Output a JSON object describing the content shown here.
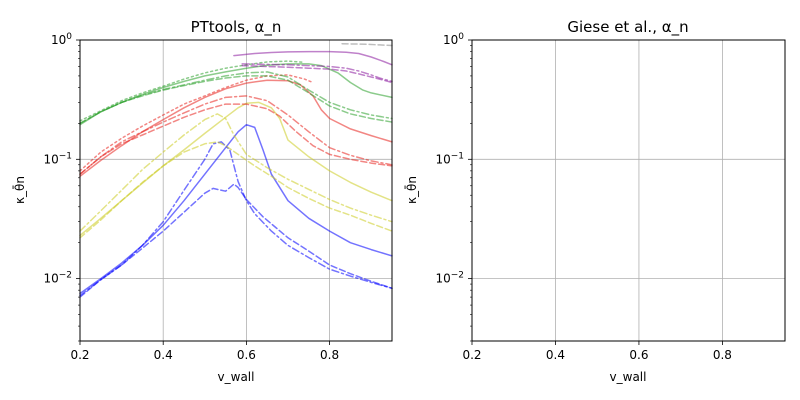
{
  "chart_data": [
    {
      "type": "line",
      "title": "PTtools, α_n",
      "xlabel": "v_wall",
      "ylabel": "κ_θ̄n",
      "xlim": [
        0.2,
        0.95
      ],
      "ylim": [
        0.003,
        1.0
      ],
      "yscale": "log",
      "xticks": [
        "0.2",
        "0.4",
        "0.6",
        "0.8"
      ],
      "yticks": [
        "10^-2",
        "10^-1",
        "10^0"
      ],
      "grid": true,
      "series": [
        {
          "color": "#0000ff",
          "style": "solid",
          "x": [
            0.2,
            0.25,
            0.3,
            0.35,
            0.4,
            0.45,
            0.5,
            0.55,
            0.58,
            0.6,
            0.62,
            0.64,
            0.66,
            0.7,
            0.75,
            0.8,
            0.85,
            0.9,
            0.95
          ],
          "y": [
            0.0075,
            0.01,
            0.0135,
            0.019,
            0.028,
            0.045,
            0.075,
            0.125,
            0.17,
            0.195,
            0.185,
            0.12,
            0.075,
            0.045,
            0.032,
            0.025,
            0.02,
            0.0175,
            0.0155
          ]
        },
        {
          "color": "#0000ff",
          "style": "dashdot",
          "x": [
            0.2,
            0.25,
            0.3,
            0.35,
            0.4,
            0.45,
            0.5,
            0.52,
            0.54,
            0.56,
            0.58,
            0.6,
            0.62,
            0.66,
            0.7,
            0.75,
            0.8,
            0.85,
            0.9,
            0.95
          ],
          "y": [
            0.0072,
            0.0098,
            0.013,
            0.019,
            0.03,
            0.055,
            0.1,
            0.135,
            0.14,
            0.12,
            0.065,
            0.045,
            0.035,
            0.025,
            0.019,
            0.015,
            0.012,
            0.0105,
            0.0093,
            0.0083
          ]
        },
        {
          "color": "#0000ff",
          "style": "dashed",
          "x": [
            0.2,
            0.25,
            0.3,
            0.35,
            0.4,
            0.45,
            0.5,
            0.52,
            0.55,
            0.57,
            0.58,
            0.6,
            0.64,
            0.7,
            0.75,
            0.8,
            0.85,
            0.9,
            0.95
          ],
          "y": [
            0.007,
            0.0098,
            0.013,
            0.018,
            0.025,
            0.036,
            0.052,
            0.057,
            0.054,
            0.062,
            0.058,
            0.046,
            0.033,
            0.022,
            0.017,
            0.013,
            0.011,
            0.0095,
            0.0083
          ]
        },
        {
          "color": "#cccc22",
          "style": "solid",
          "x": [
            0.2,
            0.25,
            0.3,
            0.35,
            0.4,
            0.45,
            0.5,
            0.55,
            0.58,
            0.6,
            0.63,
            0.66,
            0.68,
            0.7,
            0.75,
            0.8,
            0.85,
            0.9,
            0.95
          ],
          "y": [
            0.023,
            0.032,
            0.045,
            0.063,
            0.088,
            0.12,
            0.165,
            0.225,
            0.27,
            0.295,
            0.3,
            0.27,
            0.22,
            0.145,
            0.105,
            0.08,
            0.064,
            0.053,
            0.045
          ]
        },
        {
          "color": "#cccc22",
          "style": "dashdot",
          "x": [
            0.2,
            0.25,
            0.3,
            0.35,
            0.4,
            0.45,
            0.5,
            0.53,
            0.55,
            0.57,
            0.6,
            0.65,
            0.7,
            0.75,
            0.8,
            0.85,
            0.9,
            0.95
          ],
          "y": [
            0.025,
            0.037,
            0.055,
            0.082,
            0.115,
            0.16,
            0.215,
            0.24,
            0.22,
            0.16,
            0.11,
            0.085,
            0.068,
            0.056,
            0.046,
            0.039,
            0.034,
            0.03
          ]
        },
        {
          "color": "#cccc22",
          "style": "dashed",
          "x": [
            0.2,
            0.25,
            0.3,
            0.35,
            0.4,
            0.45,
            0.5,
            0.53,
            0.55,
            0.58,
            0.62,
            0.66,
            0.7,
            0.75,
            0.8,
            0.85,
            0.9,
            0.95
          ],
          "y": [
            0.022,
            0.031,
            0.045,
            0.064,
            0.088,
            0.115,
            0.135,
            0.14,
            0.13,
            0.11,
            0.088,
            0.072,
            0.058,
            0.047,
            0.039,
            0.034,
            0.029,
            0.025
          ]
        },
        {
          "color": "#e8231e",
          "style": "solid",
          "x": [
            0.2,
            0.25,
            0.3,
            0.35,
            0.4,
            0.45,
            0.5,
            0.55,
            0.6,
            0.65,
            0.7,
            0.73,
            0.76,
            0.78,
            0.8,
            0.85,
            0.9,
            0.95
          ],
          "y": [
            0.072,
            0.098,
            0.13,
            0.17,
            0.215,
            0.27,
            0.33,
            0.39,
            0.435,
            0.46,
            0.455,
            0.42,
            0.34,
            0.26,
            0.22,
            0.18,
            0.158,
            0.14
          ]
        },
        {
          "color": "#e8231e",
          "style": "dotted",
          "x": [
            0.2,
            0.25,
            0.3,
            0.35,
            0.4,
            0.45,
            0.5,
            0.55,
            0.6,
            0.65,
            0.7,
            0.74,
            0.76
          ],
          "y": [
            0.08,
            0.115,
            0.15,
            0.19,
            0.235,
            0.29,
            0.34,
            0.4,
            0.46,
            0.5,
            0.51,
            0.47,
            0.44
          ]
        },
        {
          "color": "#e8231e",
          "style": "dashdot",
          "x": [
            0.2,
            0.25,
            0.3,
            0.35,
            0.4,
            0.45,
            0.5,
            0.55,
            0.6,
            0.65,
            0.7,
            0.75,
            0.8,
            0.85,
            0.9,
            0.95
          ],
          "y": [
            0.075,
            0.105,
            0.14,
            0.17,
            0.205,
            0.245,
            0.29,
            0.33,
            0.34,
            0.31,
            0.235,
            0.17,
            0.125,
            0.108,
            0.097,
            0.09
          ]
        },
        {
          "color": "#e8231e",
          "style": "dashed",
          "x": [
            0.2,
            0.25,
            0.3,
            0.35,
            0.4,
            0.45,
            0.5,
            0.55,
            0.6,
            0.65,
            0.68,
            0.72,
            0.76,
            0.8,
            0.85,
            0.9,
            0.95
          ],
          "y": [
            0.075,
            0.105,
            0.135,
            0.16,
            0.19,
            0.225,
            0.26,
            0.29,
            0.29,
            0.265,
            0.23,
            0.17,
            0.13,
            0.11,
            0.1,
            0.093,
            0.088
          ]
        },
        {
          "color": "#2ca02c",
          "style": "solid",
          "x": [
            0.2,
            0.25,
            0.3,
            0.35,
            0.4,
            0.45,
            0.5,
            0.55,
            0.6,
            0.65,
            0.7,
            0.75,
            0.78,
            0.82,
            0.85,
            0.88,
            0.9,
            0.95
          ],
          "y": [
            0.195,
            0.25,
            0.3,
            0.35,
            0.4,
            0.45,
            0.5,
            0.54,
            0.58,
            0.615,
            0.63,
            0.63,
            0.61,
            0.53,
            0.44,
            0.38,
            0.36,
            0.33
          ]
        },
        {
          "color": "#2ca02c",
          "style": "dotted",
          "x": [
            0.2,
            0.25,
            0.3,
            0.35,
            0.4,
            0.45,
            0.5,
            0.55,
            0.6,
            0.65,
            0.7,
            0.74
          ],
          "y": [
            0.21,
            0.255,
            0.31,
            0.36,
            0.41,
            0.47,
            0.53,
            0.58,
            0.62,
            0.655,
            0.665,
            0.65
          ]
        },
        {
          "color": "#2ca02c",
          "style": "dashdot",
          "x": [
            0.2,
            0.25,
            0.3,
            0.35,
            0.4,
            0.45,
            0.5,
            0.55,
            0.6,
            0.65,
            0.7,
            0.75,
            0.8,
            0.85,
            0.9,
            0.95
          ],
          "y": [
            0.2,
            0.25,
            0.3,
            0.345,
            0.385,
            0.42,
            0.46,
            0.5,
            0.53,
            0.54,
            0.49,
            0.38,
            0.3,
            0.26,
            0.235,
            0.22
          ]
        },
        {
          "color": "#2ca02c",
          "style": "dashed",
          "x": [
            0.2,
            0.25,
            0.3,
            0.35,
            0.4,
            0.45,
            0.5,
            0.55,
            0.6,
            0.65,
            0.7,
            0.75,
            0.8,
            0.85,
            0.9,
            0.95
          ],
          "y": [
            0.2,
            0.25,
            0.3,
            0.34,
            0.38,
            0.415,
            0.45,
            0.48,
            0.5,
            0.5,
            0.46,
            0.36,
            0.28,
            0.24,
            0.22,
            0.205
          ]
        },
        {
          "color": "#8b1a9e",
          "style": "solid",
          "x": [
            0.57,
            0.62,
            0.66,
            0.7,
            0.75,
            0.8,
            0.84,
            0.87,
            0.9,
            0.93,
            0.95
          ],
          "y": [
            0.74,
            0.77,
            0.785,
            0.795,
            0.8,
            0.8,
            0.79,
            0.77,
            0.72,
            0.66,
            0.62
          ]
        },
        {
          "color": "#8b1a9e",
          "style": "dashdot",
          "x": [
            0.59,
            0.65,
            0.7,
            0.75,
            0.8,
            0.84,
            0.87,
            0.9,
            0.92,
            0.95
          ],
          "y": [
            0.63,
            0.625,
            0.62,
            0.61,
            0.6,
            0.58,
            0.55,
            0.51,
            0.48,
            0.45
          ]
        },
        {
          "color": "#8b1a9e",
          "style": "dashed",
          "x": [
            0.59,
            0.65,
            0.7,
            0.75,
            0.8,
            0.84,
            0.87,
            0.9,
            0.92,
            0.95
          ],
          "y": [
            0.61,
            0.6,
            0.59,
            0.58,
            0.57,
            0.55,
            0.52,
            0.49,
            0.47,
            0.44
          ]
        },
        {
          "color": "#888888",
          "style": "dashed",
          "x": [
            0.83,
            0.86,
            0.89,
            0.92,
            0.95
          ],
          "y": [
            0.93,
            0.925,
            0.92,
            0.91,
            0.9
          ]
        }
      ]
    },
    {
      "type": "line",
      "title": "Giese et al., α_n",
      "xlabel": "v_wall",
      "ylabel": "κ_θ̄n",
      "xlim": [
        0.2,
        0.95
      ],
      "ylim": [
        0.003,
        1.0
      ],
      "yscale": "log",
      "xticks": [
        "0.2",
        "0.4",
        "0.6",
        "0.8"
      ],
      "yticks": [
        "10^-2",
        "10^-1",
        "10^0"
      ],
      "grid": true,
      "series": []
    }
  ]
}
